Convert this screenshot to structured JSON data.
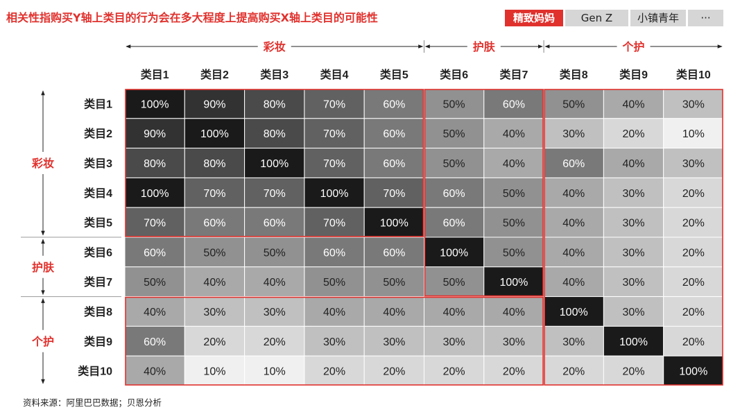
{
  "title": "相关性指购买Y轴上类目的行为会在多大程度上提高购买X轴上类目的可能性",
  "tabs": [
    {
      "label": "精致妈妈",
      "active": true
    },
    {
      "label": "Gen Z",
      "active": false
    },
    {
      "label": "小镇青年",
      "active": false
    },
    {
      "label": "···",
      "active": false
    }
  ],
  "source": "资料来源：阿里巴巴数据；贝恩分析",
  "colors": {
    "accent": "#e0312d",
    "cell_dark": "#1a1a1a",
    "cell_light": "#f0f0f0",
    "text_light": "#ffffff",
    "text_dark": "#222222"
  },
  "chart_data": {
    "type": "heatmap",
    "value_suffix": "%",
    "x_labels": [
      "类目1",
      "类目2",
      "类目3",
      "类目4",
      "类目5",
      "类目6",
      "类目7",
      "类目8",
      "类目9",
      "类目10"
    ],
    "y_labels": [
      "类目1",
      "类目2",
      "类目3",
      "类目4",
      "类目5",
      "类目6",
      "类目7",
      "类目8",
      "类目9",
      "类目10"
    ],
    "x_groups": [
      {
        "label": "彩妆",
        "start": 0,
        "end": 4
      },
      {
        "label": "护肤",
        "start": 5,
        "end": 6
      },
      {
        "label": "个护",
        "start": 7,
        "end": 9
      }
    ],
    "y_groups": [
      {
        "label": "彩妆",
        "start": 0,
        "end": 4
      },
      {
        "label": "护肤",
        "start": 5,
        "end": 6
      },
      {
        "label": "个护",
        "start": 7,
        "end": 9
      }
    ],
    "values": [
      [
        100,
        90,
        80,
        70,
        60,
        50,
        60,
        50,
        40,
        30
      ],
      [
        90,
        100,
        80,
        70,
        60,
        50,
        40,
        30,
        20,
        10
      ],
      [
        80,
        80,
        100,
        70,
        60,
        50,
        40,
        60,
        40,
        30
      ],
      [
        100,
        70,
        70,
        100,
        70,
        60,
        50,
        40,
        30,
        20
      ],
      [
        70,
        60,
        60,
        70,
        100,
        60,
        50,
        40,
        30,
        20
      ],
      [
        60,
        50,
        50,
        60,
        60,
        100,
        50,
        40,
        30,
        20
      ],
      [
        50,
        40,
        40,
        50,
        50,
        50,
        100,
        40,
        30,
        20
      ],
      [
        40,
        30,
        30,
        40,
        40,
        40,
        40,
        100,
        30,
        20
      ],
      [
        60,
        20,
        20,
        30,
        30,
        30,
        30,
        30,
        100,
        20
      ],
      [
        40,
        10,
        10,
        20,
        20,
        20,
        20,
        20,
        20,
        100
      ]
    ],
    "highlight_boxes": [
      {
        "rows": [
          0,
          4
        ],
        "cols": [
          0,
          4
        ]
      },
      {
        "rows": [
          0,
          6
        ],
        "cols": [
          5,
          6
        ]
      },
      {
        "rows": [
          0,
          9
        ],
        "cols": [
          7,
          9
        ]
      },
      {
        "rows": [
          7,
          9
        ],
        "cols": [
          0,
          6
        ]
      }
    ]
  }
}
